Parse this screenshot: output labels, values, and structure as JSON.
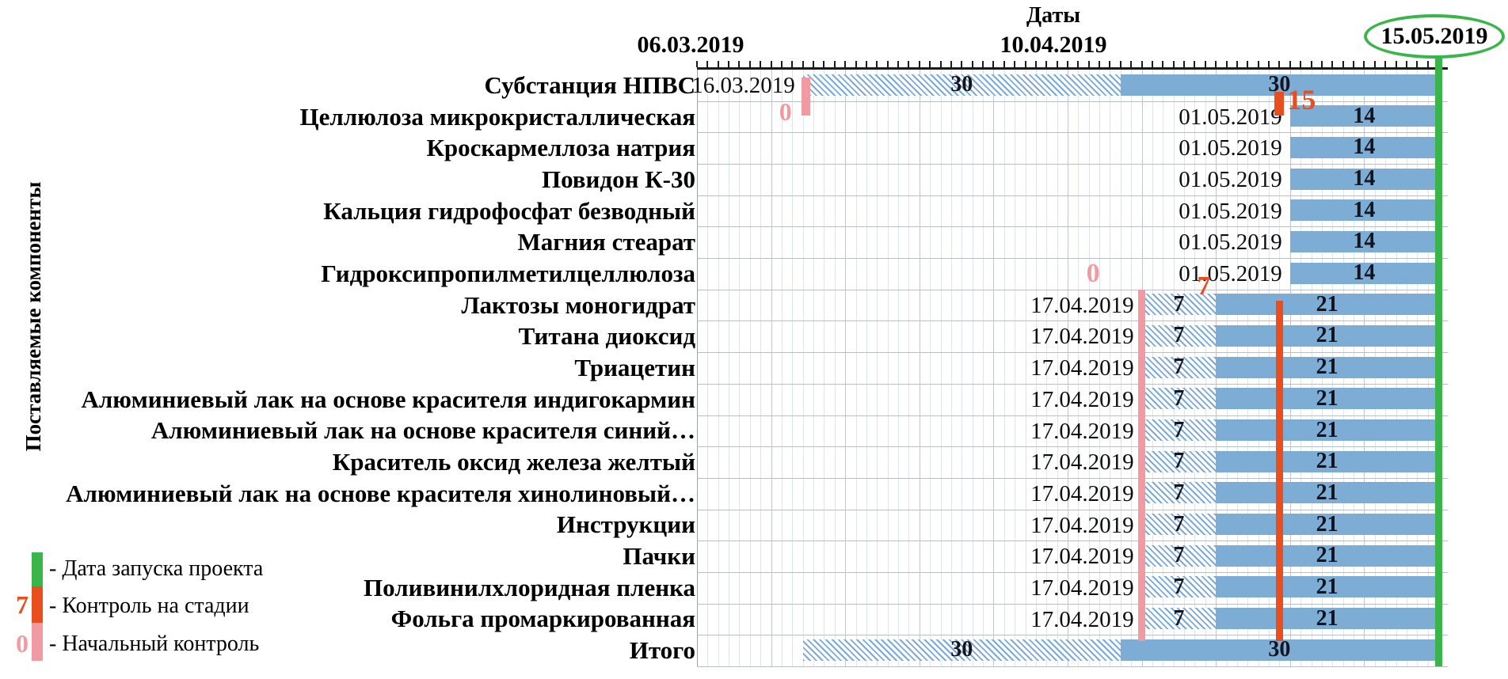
{
  "header": {
    "title": "Даты",
    "axis_dates": [
      "06.03.2019",
      "10.04.2019",
      "15.05.2019"
    ]
  },
  "y_axis": {
    "label": "Поставляемые компоненты"
  },
  "legend": {
    "items": [
      {
        "value": "",
        "label": "- Дата запуска проекта",
        "color": "#3ab54a"
      },
      {
        "value": "7",
        "label": "- Контроль на стадии",
        "color": "#e94e1f"
      },
      {
        "value": "0",
        "label": "- Начальный контроль",
        "color": "#f29aa1"
      }
    ]
  },
  "colors": {
    "bar": "#7dadd4",
    "project_launch": "#3ab54a",
    "stage_control": "#e94e1f",
    "initial_control": "#f29aa1"
  },
  "chart_data": {
    "type": "gantt",
    "title": "Даты",
    "y_axis_label": "Поставляемые компоненты",
    "x_axis": {
      "start": "06.03.2019",
      "mid": "10.04.2019",
      "end": "15.05.2019",
      "tick_interval_days": 1,
      "major_grid_interval_days": 7
    },
    "rows": [
      {
        "name": "Субстанция НПВС",
        "date_label": "16.03.2019",
        "segments": [
          {
            "style": "hatched",
            "start": "16.03.2019",
            "days": 30,
            "label": "30"
          },
          {
            "style": "solid",
            "start": "15.04.2019",
            "days": 30,
            "label": "30"
          }
        ],
        "initial_control": {
          "value": "0",
          "date": "16.03.2019"
        },
        "stage_control": {
          "value": "15",
          "date": "30.04.2019"
        }
      },
      {
        "name": "Целлюлоза микрокристаллическая",
        "date_label": "01.05.2019",
        "segments": [
          {
            "style": "solid",
            "start": "01.05.2019",
            "days": 14,
            "label": "14"
          }
        ]
      },
      {
        "name": "Кроскармеллоза натрия",
        "date_label": "01.05.2019",
        "segments": [
          {
            "style": "solid",
            "start": "01.05.2019",
            "days": 14,
            "label": "14"
          }
        ]
      },
      {
        "name": "Повидон К-30",
        "date_label": "01.05.2019",
        "segments": [
          {
            "style": "solid",
            "start": "01.05.2019",
            "days": 14,
            "label": "14"
          }
        ]
      },
      {
        "name": "Кальция гидрофосфат безводный",
        "date_label": "01.05.2019",
        "segments": [
          {
            "style": "solid",
            "start": "01.05.2019",
            "days": 14,
            "label": "14"
          }
        ]
      },
      {
        "name": "Магния стеарат",
        "date_label": "01.05.2019",
        "segments": [
          {
            "style": "solid",
            "start": "01.05.2019",
            "days": 14,
            "label": "14"
          }
        ]
      },
      {
        "name": "Гидроксипропилметилцеллюлоза",
        "date_label": "01.05.2019",
        "segments": [
          {
            "style": "solid",
            "start": "01.05.2019",
            "days": 14,
            "label": "14"
          }
        ]
      },
      {
        "name": "Лактозы моногидрат",
        "date_label": "17.04.2019",
        "segments": [
          {
            "style": "hatched",
            "start": "17.04.2019",
            "days": 7,
            "label": "7"
          },
          {
            "style": "solid",
            "start": "24.04.2019",
            "days": 21,
            "label": "21"
          }
        ]
      },
      {
        "name": "Титана диоксид",
        "date_label": "17.04.2019",
        "segments": [
          {
            "style": "hatched",
            "start": "17.04.2019",
            "days": 7,
            "label": "7"
          },
          {
            "style": "solid",
            "start": "24.04.2019",
            "days": 21,
            "label": "21"
          }
        ]
      },
      {
        "name": "Триацетин",
        "date_label": "17.04.2019",
        "segments": [
          {
            "style": "hatched",
            "start": "17.04.2019",
            "days": 7,
            "label": "7"
          },
          {
            "style": "solid",
            "start": "24.04.2019",
            "days": 21,
            "label": "21"
          }
        ]
      },
      {
        "name": "Алюминиевый лак на основе красителя индигокармин",
        "date_label": "17.04.2019",
        "segments": [
          {
            "style": "hatched",
            "start": "17.04.2019",
            "days": 7,
            "label": "7"
          },
          {
            "style": "solid",
            "start": "24.04.2019",
            "days": 21,
            "label": "21"
          }
        ]
      },
      {
        "name": "Алюминиевый лак на основе красителя синий…",
        "date_label": "17.04.2019",
        "segments": [
          {
            "style": "hatched",
            "start": "17.04.2019",
            "days": 7,
            "label": "7"
          },
          {
            "style": "solid",
            "start": "24.04.2019",
            "days": 21,
            "label": "21"
          }
        ]
      },
      {
        "name": "Краситель оксид железа желтый",
        "date_label": "17.04.2019",
        "segments": [
          {
            "style": "hatched",
            "start": "17.04.2019",
            "days": 7,
            "label": "7"
          },
          {
            "style": "solid",
            "start": "24.04.2019",
            "days": 21,
            "label": "21"
          }
        ]
      },
      {
        "name": "Алюминиевый лак на основе красителя хинолиновый…",
        "date_label": "17.04.2019",
        "segments": [
          {
            "style": "hatched",
            "start": "17.04.2019",
            "days": 7,
            "label": "7"
          },
          {
            "style": "solid",
            "start": "24.04.2019",
            "days": 21,
            "label": "21"
          }
        ]
      },
      {
        "name": "Инструкции",
        "date_label": "17.04.2019",
        "segments": [
          {
            "style": "hatched",
            "start": "17.04.2019",
            "days": 7,
            "label": "7"
          },
          {
            "style": "solid",
            "start": "24.04.2019",
            "days": 21,
            "label": "21"
          }
        ]
      },
      {
        "name": "Пачки",
        "date_label": "17.04.2019",
        "segments": [
          {
            "style": "hatched",
            "start": "17.04.2019",
            "days": 7,
            "label": "7"
          },
          {
            "style": "solid",
            "start": "24.04.2019",
            "days": 21,
            "label": "21"
          }
        ]
      },
      {
        "name": "Поливинилхлоридная пленка",
        "date_label": "17.04.2019",
        "segments": [
          {
            "style": "hatched",
            "start": "17.04.2019",
            "days": 7,
            "label": "7"
          },
          {
            "style": "solid",
            "start": "24.04.2019",
            "days": 21,
            "label": "21"
          }
        ]
      },
      {
        "name": "Фольга промаркированная",
        "date_label": "17.04.2019",
        "segments": [
          {
            "style": "hatched",
            "start": "17.04.2019",
            "days": 7,
            "label": "7"
          },
          {
            "style": "solid",
            "start": "24.04.2019",
            "days": 21,
            "label": "21"
          }
        ]
      },
      {
        "name": "Итого",
        "date_label": "",
        "segments": [
          {
            "style": "hatched",
            "start": "16.03.2019",
            "days": 30,
            "label": "30"
          },
          {
            "style": "solid",
            "start": "15.04.2019",
            "days": 30,
            "label": "30"
          }
        ]
      }
    ],
    "vertical_lines": [
      {
        "id": "project-launch-line",
        "label": "",
        "date": "15.05.2019",
        "color": "#3ab54a",
        "rows_from": 1,
        "rows_to": 19
      },
      {
        "id": "initial-control-line",
        "label": "0",
        "date": "17.04.2019",
        "color": "#f29aa1",
        "rows_from": 8,
        "rows_to": 18
      },
      {
        "id": "stage-control-line",
        "label": "7",
        "date": "30.04.2019",
        "color": "#e94e1f",
        "rows_from": 8,
        "rows_to": 18
      }
    ]
  }
}
